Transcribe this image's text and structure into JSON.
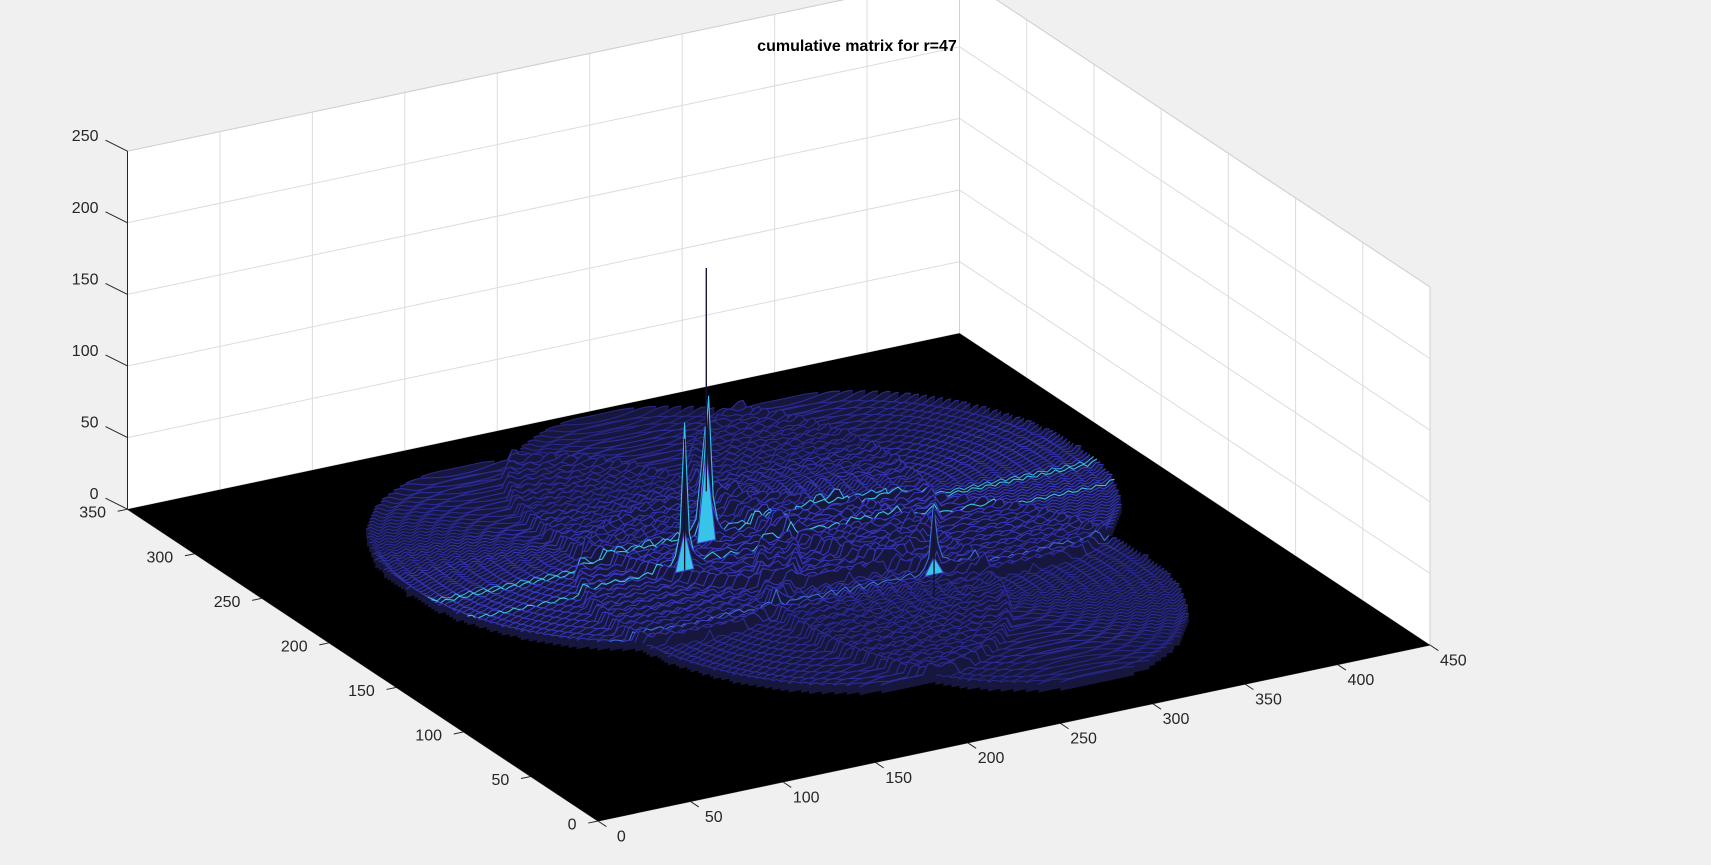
{
  "chart_data": {
    "type": "surface",
    "title": "cumulative matrix for r=47",
    "xlabel": "",
    "ylabel": "",
    "zlabel": "",
    "xlim": [
      0,
      450
    ],
    "ylim": [
      0,
      350
    ],
    "zlim": [
      0,
      250
    ],
    "x_ticks": [
      "0",
      "50",
      "100",
      "150",
      "200",
      "250",
      "300",
      "350",
      "400",
      "450"
    ],
    "y_ticks": [
      "0",
      "50",
      "100",
      "150",
      "200",
      "250",
      "300",
      "350"
    ],
    "z_ticks": [
      "0",
      "50",
      "100",
      "150",
      "200",
      "250"
    ],
    "grid": true,
    "colormap": "parula",
    "surface_colors": {
      "base": "#000000",
      "low": "#1f1f6e",
      "mid": "#3c3cd0",
      "high": "#38c4e8"
    },
    "circles": [
      {
        "cx": 155,
        "cy": 225,
        "r": 95
      },
      {
        "cx": 245,
        "cy": 245,
        "r": 95
      },
      {
        "cx": 330,
        "cy": 225,
        "r": 95
      },
      {
        "cx": 215,
        "cy": 150,
        "r": 95
      },
      {
        "cx": 290,
        "cy": 120,
        "r": 95
      }
    ],
    "peaks": [
      {
        "x": 212,
        "y": 211,
        "z": 197
      },
      {
        "x": 185,
        "y": 190,
        "z": 98
      },
      {
        "x": 285,
        "y": 142,
        "z": 52
      }
    ]
  }
}
